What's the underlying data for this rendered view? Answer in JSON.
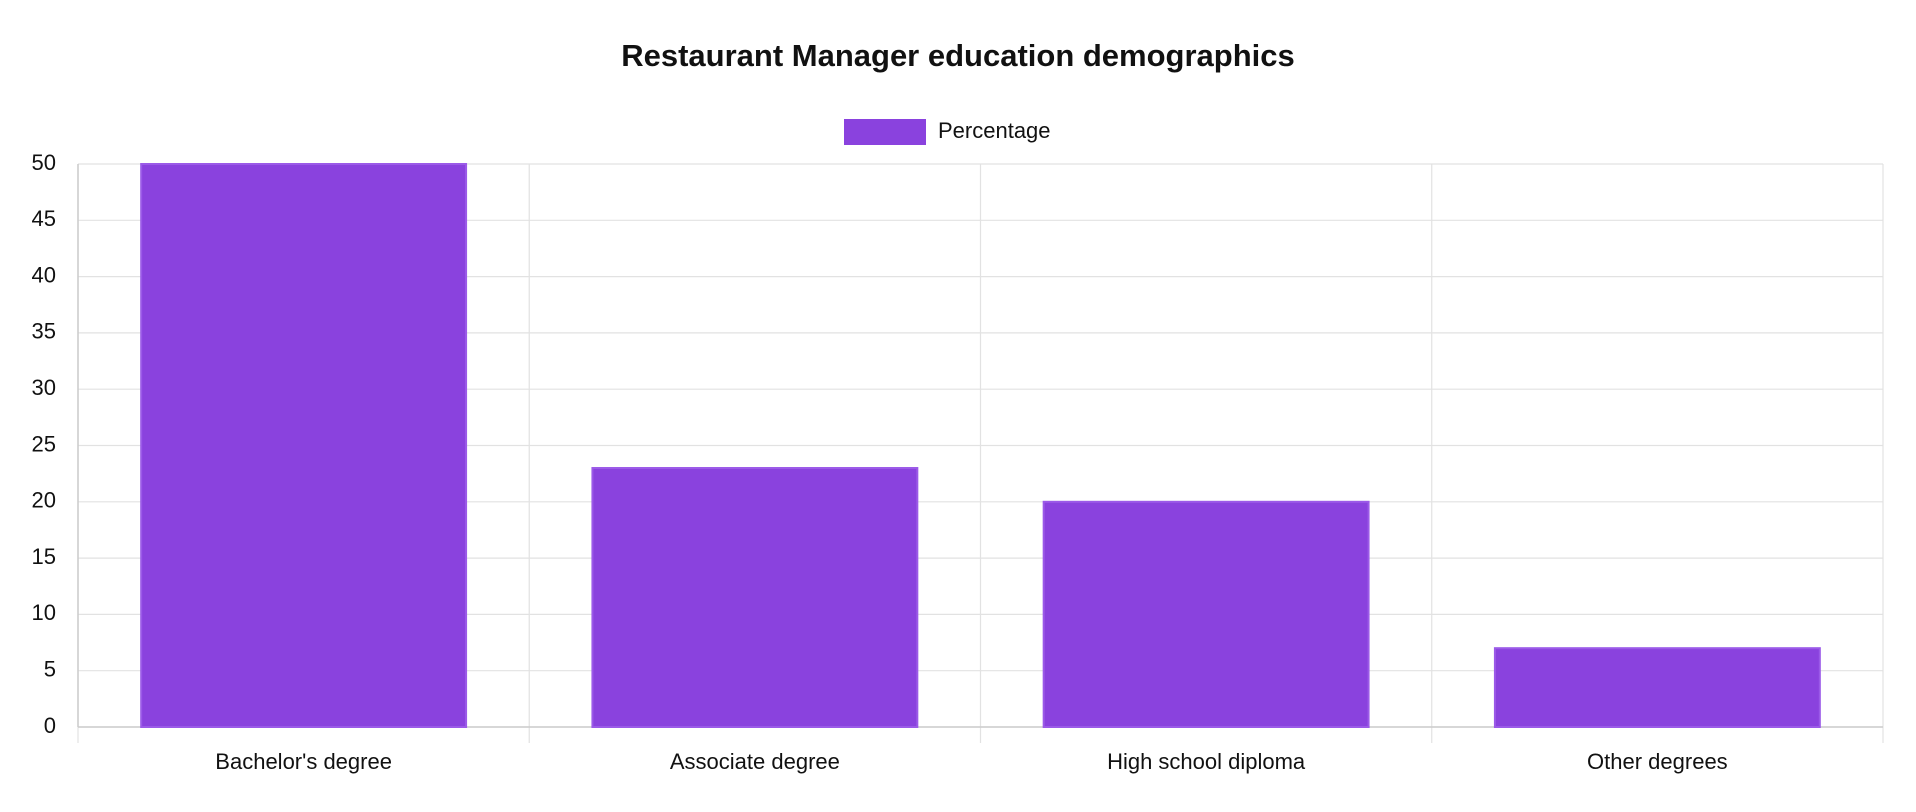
{
  "chart_data": {
    "type": "bar",
    "title": "Restaurant Manager education demographics",
    "categories": [
      "Bachelor's degree",
      "Associate degree",
      "High school diploma",
      "Other degrees"
    ],
    "series": [
      {
        "name": "Percentage",
        "color": "#8a42de",
        "values": [
          50,
          23,
          20,
          7
        ]
      }
    ],
    "ylim": [
      0,
      50
    ],
    "yticks": [
      0,
      5,
      10,
      15,
      20,
      25,
      30,
      35,
      40,
      45,
      50
    ],
    "grid": true,
    "legend": "top"
  }
}
